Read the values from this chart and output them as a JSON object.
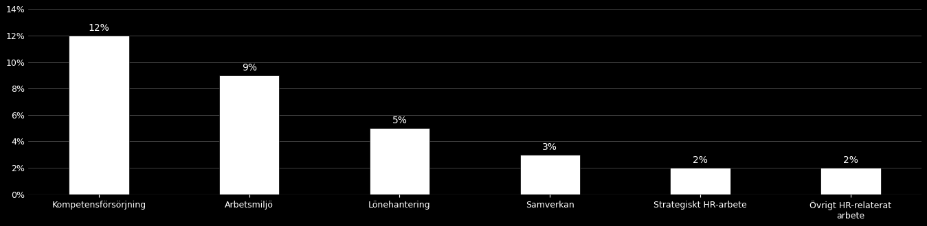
{
  "categories": [
    "Kompetensförsörjning",
    "Arbetsmiljö",
    "Lönehantering",
    "Samverkan",
    "Strategiskt HR-arbete",
    "Övrigt HR-relaterat\narbete"
  ],
  "values": [
    0.12,
    0.09,
    0.05,
    0.03,
    0.02,
    0.02
  ],
  "labels": [
    "12%",
    "9%",
    "5%",
    "3%",
    "2%",
    "2%"
  ],
  "bar_color": "#ffffff",
  "bar_edge_color": "#000000",
  "background_color": "#000000",
  "text_color": "#ffffff",
  "grid_color": "#ffffff",
  "grid_alpha": 0.3,
  "ylim": [
    0,
    0.14
  ],
  "yticks": [
    0,
    0.02,
    0.04,
    0.06,
    0.08,
    0.1,
    0.12,
    0.14
  ],
  "ytick_labels": [
    "0%",
    "2%",
    "4%",
    "6%",
    "8%",
    "10%",
    "12%",
    "14%"
  ],
  "label_fontsize": 10,
  "tick_fontsize": 9,
  "bar_width": 0.4
}
